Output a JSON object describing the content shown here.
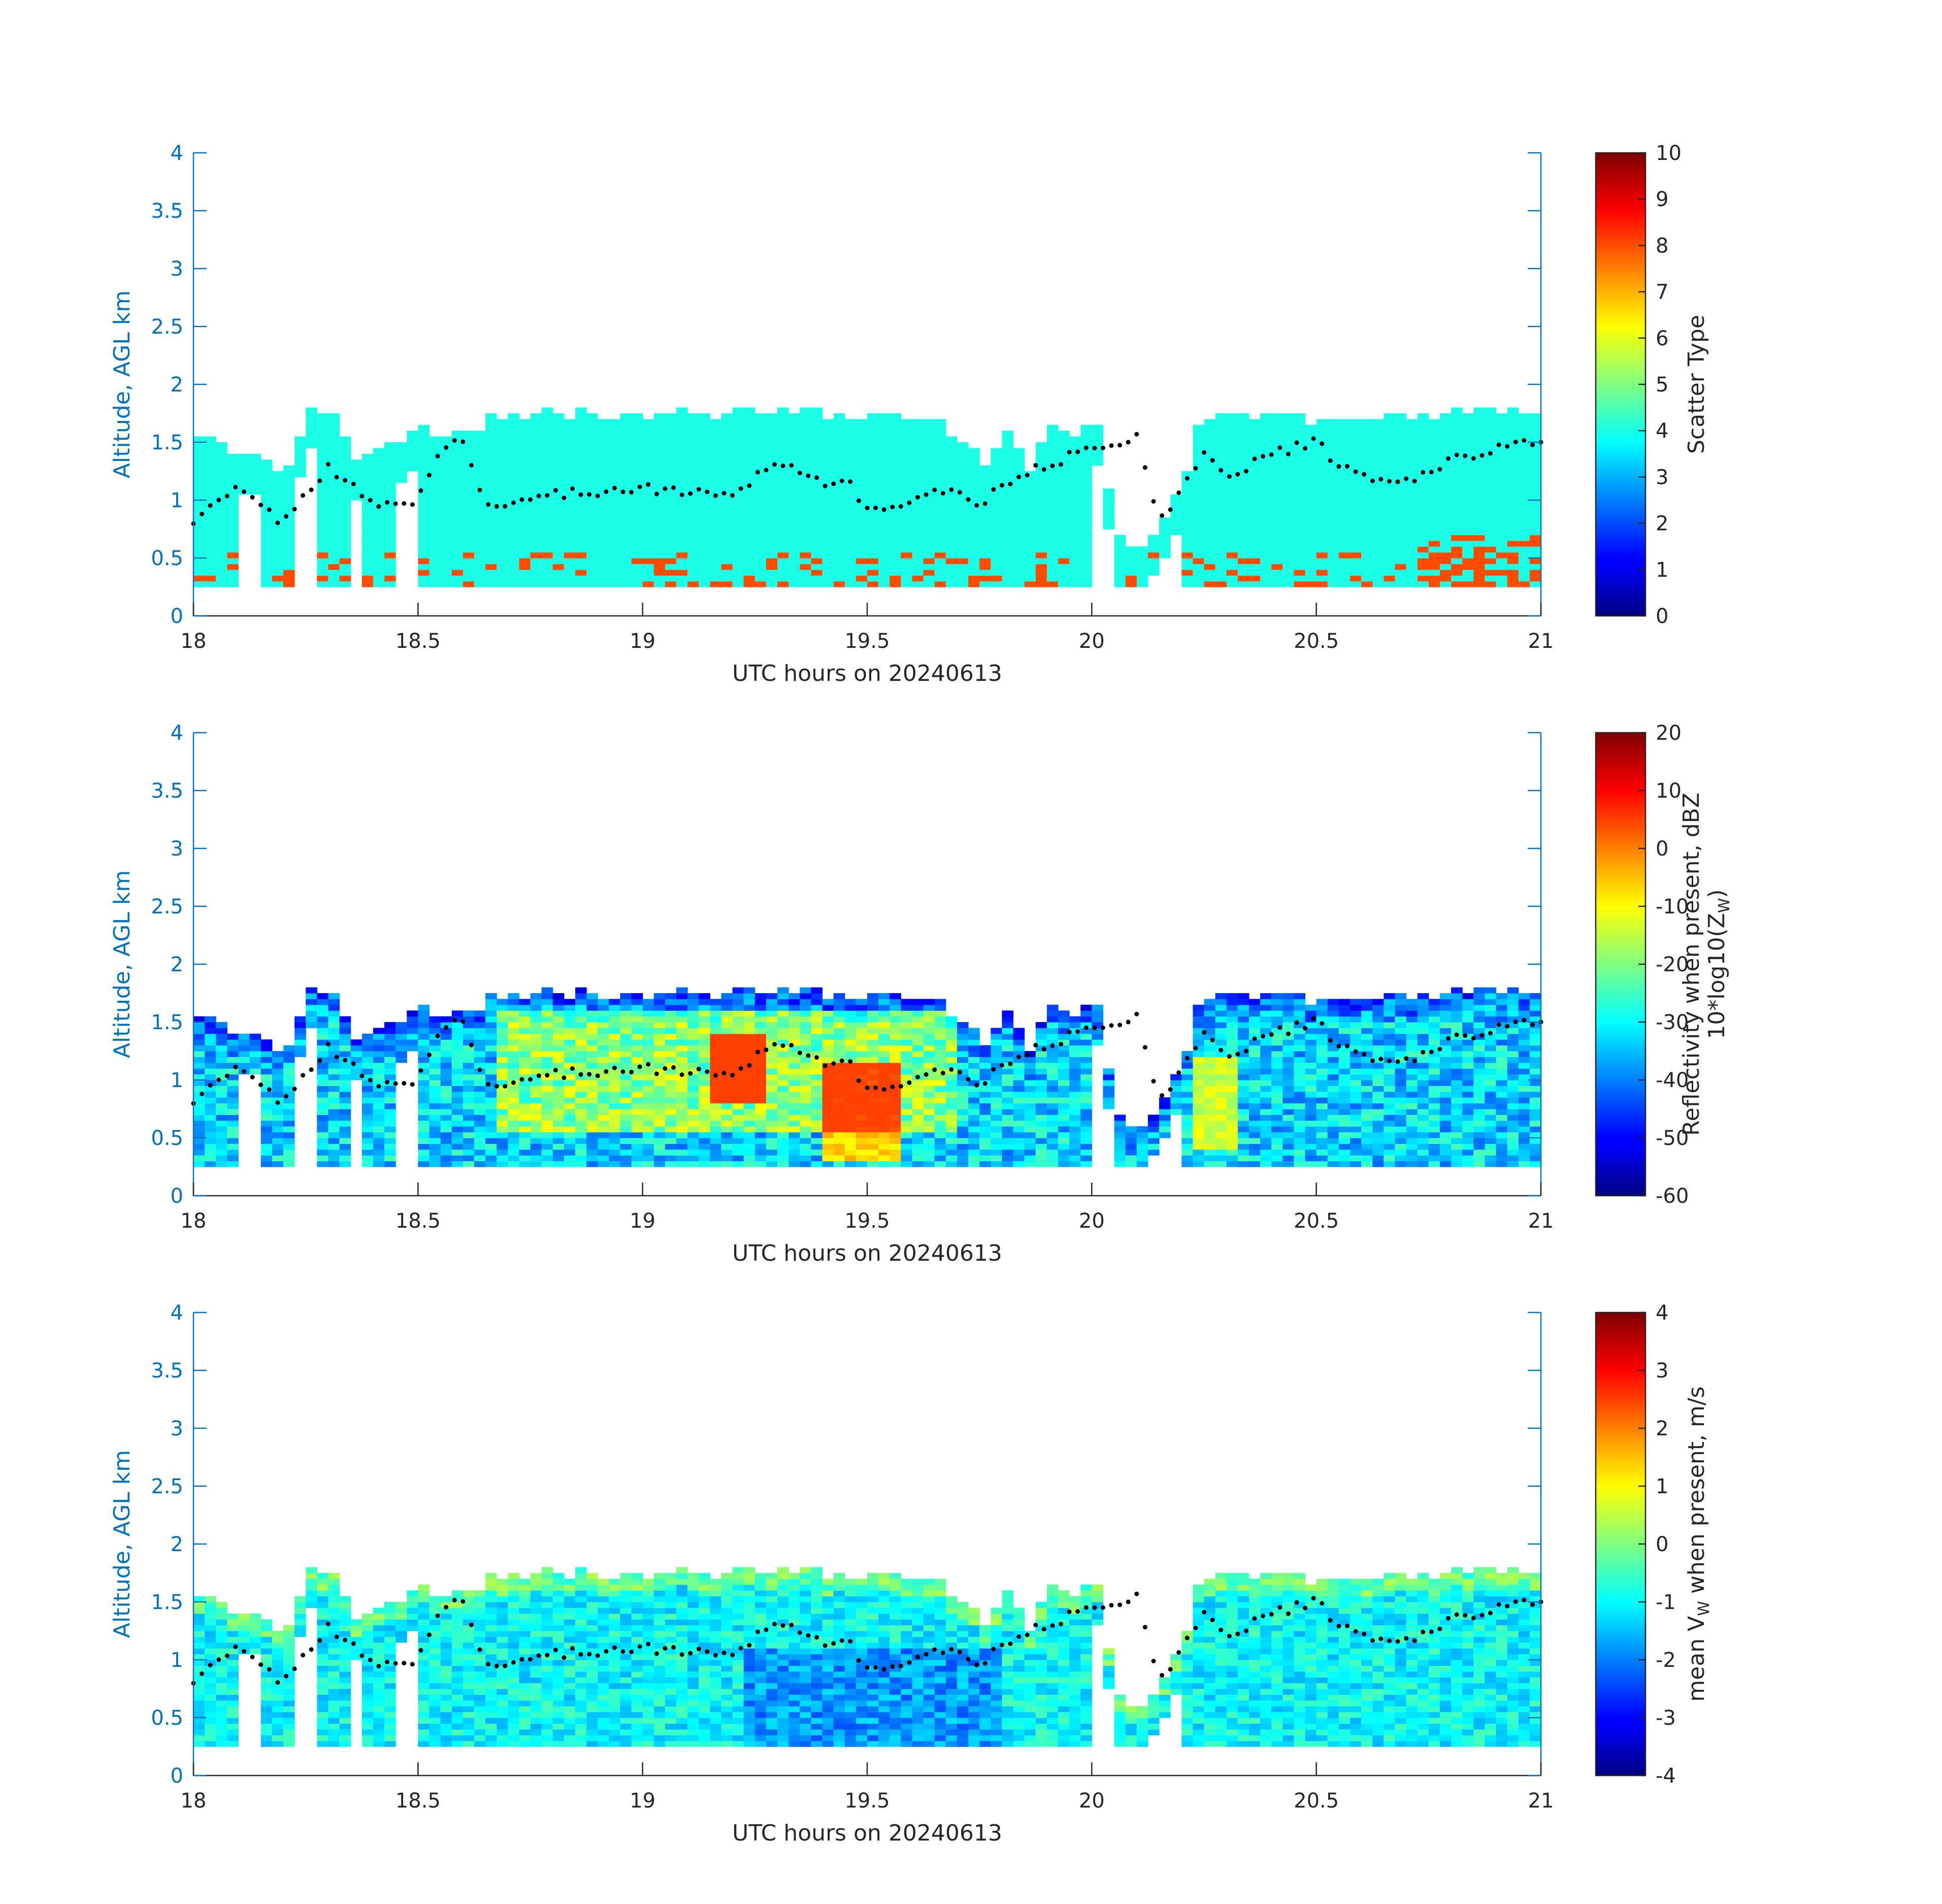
{
  "chart_data": [
    {
      "type": "heatmap",
      "xlabel": "UTC hours on 20240613",
      "ylabel": "Altitude, AGL km",
      "xlim": [
        18,
        21
      ],
      "ylim": [
        0,
        4
      ],
      "xticks": [
        "18",
        "18.5",
        "19",
        "19.5",
        "20",
        "20.5",
        "21"
      ],
      "yticks": [
        "0",
        "0.5",
        "1",
        "1.5",
        "2",
        "2.5",
        "3",
        "3.5",
        "4"
      ],
      "colorbar": {
        "label": "Scatter Type",
        "clim": [
          0,
          10
        ],
        "ticks": [
          "0",
          "1",
          "2",
          "3",
          "4",
          "5",
          "6",
          "7",
          "8",
          "9",
          "10"
        ]
      },
      "dominant_value": 4,
      "secondary_value": 8,
      "base_altitude_km": 0.25,
      "cloud_top_km": [
        [
          18.0,
          1.55
        ],
        [
          18.05,
          1.45
        ],
        [
          18.1,
          1.35
        ],
        [
          18.15,
          1.3
        ],
        [
          18.2,
          1.25
        ],
        [
          18.25,
          1.75
        ],
        [
          18.3,
          1.75
        ],
        [
          18.35,
          1.35
        ],
        [
          18.4,
          1.45
        ],
        [
          18.45,
          1.5
        ],
        [
          18.5,
          1.6
        ],
        [
          18.55,
          1.55
        ],
        [
          18.6,
          1.55
        ],
        [
          18.65,
          1.7
        ],
        [
          18.75,
          1.75
        ],
        [
          19.0,
          1.7
        ],
        [
          19.25,
          1.75
        ],
        [
          19.5,
          1.7
        ],
        [
          19.65,
          1.65
        ],
        [
          19.7,
          1.5
        ],
        [
          19.75,
          1.3
        ],
        [
          19.8,
          1.6
        ],
        [
          19.85,
          1.25
        ],
        [
          19.9,
          1.6
        ],
        [
          19.95,
          1.55
        ],
        [
          20.0,
          1.6
        ],
        [
          20.05,
          0.65
        ],
        [
          20.1,
          0.6
        ],
        [
          20.15,
          0.8
        ],
        [
          20.2,
          1.2
        ],
        [
          20.22,
          1.65
        ],
        [
          20.3,
          1.7
        ],
        [
          20.4,
          1.7
        ],
        [
          20.5,
          1.65
        ],
        [
          20.6,
          1.7
        ],
        [
          20.7,
          1.7
        ],
        [
          20.8,
          1.75
        ],
        [
          20.9,
          1.75
        ],
        [
          21.0,
          1.75
        ]
      ],
      "gap_intervals_hours": [
        [
          18.1,
          18.13
        ],
        [
          18.22,
          18.26
        ],
        [
          18.33,
          18.37
        ],
        [
          18.45,
          18.5
        ],
        [
          20.0,
          20.05
        ],
        [
          20.12,
          20.2
        ]
      ],
      "bright_band_km": [
        [
          18.0,
          0.83
        ],
        [
          18.1,
          1.1
        ],
        [
          18.2,
          0.8
        ],
        [
          18.3,
          1.3
        ],
        [
          18.4,
          0.95
        ],
        [
          18.5,
          1.0
        ],
        [
          18.55,
          1.45
        ],
        [
          18.6,
          1.5
        ],
        [
          18.65,
          0.95
        ],
        [
          18.8,
          1.05
        ],
        [
          19.0,
          1.1
        ],
        [
          19.2,
          1.05
        ],
        [
          19.3,
          1.35
        ],
        [
          19.4,
          1.15
        ],
        [
          19.45,
          1.2
        ],
        [
          19.5,
          0.9
        ],
        [
          19.6,
          1.0
        ],
        [
          19.7,
          1.1
        ],
        [
          19.75,
          0.95
        ],
        [
          19.8,
          1.15
        ],
        [
          19.9,
          1.3
        ],
        [
          20.0,
          1.45
        ],
        [
          20.1,
          1.55
        ],
        [
          20.15,
          0.8
        ],
        [
          20.25,
          1.4
        ],
        [
          20.3,
          1.2
        ],
        [
          20.4,
          1.4
        ],
        [
          20.5,
          1.5
        ],
        [
          20.55,
          1.3
        ],
        [
          20.6,
          1.2
        ],
        [
          20.7,
          1.15
        ],
        [
          20.8,
          1.35
        ],
        [
          20.9,
          1.45
        ],
        [
          21.0,
          1.5
        ]
      ]
    },
    {
      "type": "heatmap",
      "xlabel": "UTC hours on 20240613",
      "ylabel": "Altitude, AGL km",
      "xlim": [
        18,
        21
      ],
      "ylim": [
        0,
        4
      ],
      "xticks": [
        "18",
        "18.5",
        "19",
        "19.5",
        "20",
        "20.5",
        "21"
      ],
      "yticks": [
        "0",
        "0.5",
        "1",
        "1.5",
        "2",
        "2.5",
        "3",
        "3.5",
        "4"
      ],
      "colorbar": {
        "label_line1": "Reflectivity when present, dBZ",
        "label_line2": "10*log10(Z",
        "label_sub": "W",
        "label_tail": ")",
        "clim": [
          -60,
          20
        ],
        "ticks": [
          "-60",
          "-50",
          "-40",
          "-30",
          "-20",
          "-10",
          "0",
          "10",
          "20"
        ]
      },
      "value_range_dbz": [
        -60,
        5
      ],
      "peak_reflectivity_regions": [
        {
          "x": [
            19.15,
            19.25
          ],
          "y_km": [
            0.8,
            1.4
          ],
          "dbz": 0
        },
        {
          "x": [
            19.4,
            19.55
          ],
          "y_km": [
            0.3,
            1.1
          ],
          "dbz": -3
        },
        {
          "x": [
            20.22,
            20.3
          ],
          "y_km": [
            0.4,
            1.2
          ],
          "dbz": -10
        }
      ],
      "isolated_point": [
        20.1,
        1.55
      ]
    },
    {
      "type": "heatmap",
      "xlabel": "UTC hours on 20240613",
      "ylabel": "Altitude, AGL km",
      "xlim": [
        18,
        21
      ],
      "ylim": [
        0,
        4
      ],
      "xticks": [
        "18",
        "18.5",
        "19",
        "19.5",
        "20",
        "20.5",
        "21"
      ],
      "yticks": [
        "0",
        "0.5",
        "1",
        "1.5",
        "2",
        "2.5",
        "3",
        "3.5",
        "4"
      ],
      "colorbar": {
        "label_pre": "mean V",
        "label_sub": "W",
        "label_post": " when present, m/s",
        "clim": [
          -4,
          4
        ],
        "ticks": [
          "-4",
          "-3",
          "-2",
          "-1",
          "0",
          "1",
          "2",
          "3",
          "4"
        ]
      },
      "value_range_ms": [
        -3,
        0.5
      ],
      "typical_value_ms": -1,
      "isolated_point": [
        20.1,
        1.55
      ]
    }
  ]
}
